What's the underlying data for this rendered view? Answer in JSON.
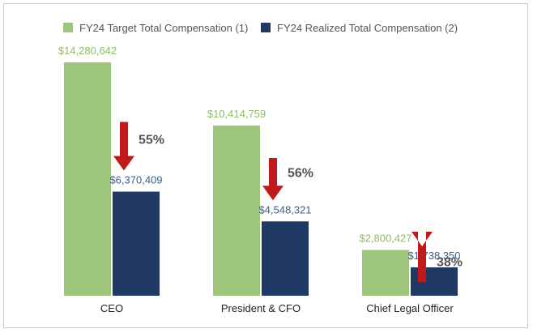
{
  "chart_data": {
    "type": "bar",
    "categories": [
      "CEO",
      "President & CFO",
      "Chief Legal Officer"
    ],
    "series": [
      {
        "name": "FY24 Target Total Compensation (1)",
        "values": [
          14280642,
          10414759,
          2800427
        ],
        "labels": [
          "$14,280,642",
          "$10,414,759",
          "$2,800,427"
        ]
      },
      {
        "name": "FY24 Realized Total Compensation (2)",
        "values": [
          6370409,
          4548321,
          1738350
        ],
        "labels": [
          "$6,370,409",
          "$4,548,321",
          "$1,738,350"
        ]
      }
    ],
    "reductions": [
      "55%",
      "56%",
      "38%"
    ],
    "ylim": [
      0,
      14280642
    ],
    "grid": false,
    "legend_position": "top-left"
  },
  "colors": {
    "target": "#9dc57b",
    "realized": "#1f3864",
    "target_label": "#8dbb67",
    "realized_label": "#3c5f8c",
    "arrow": "#c0191a"
  }
}
